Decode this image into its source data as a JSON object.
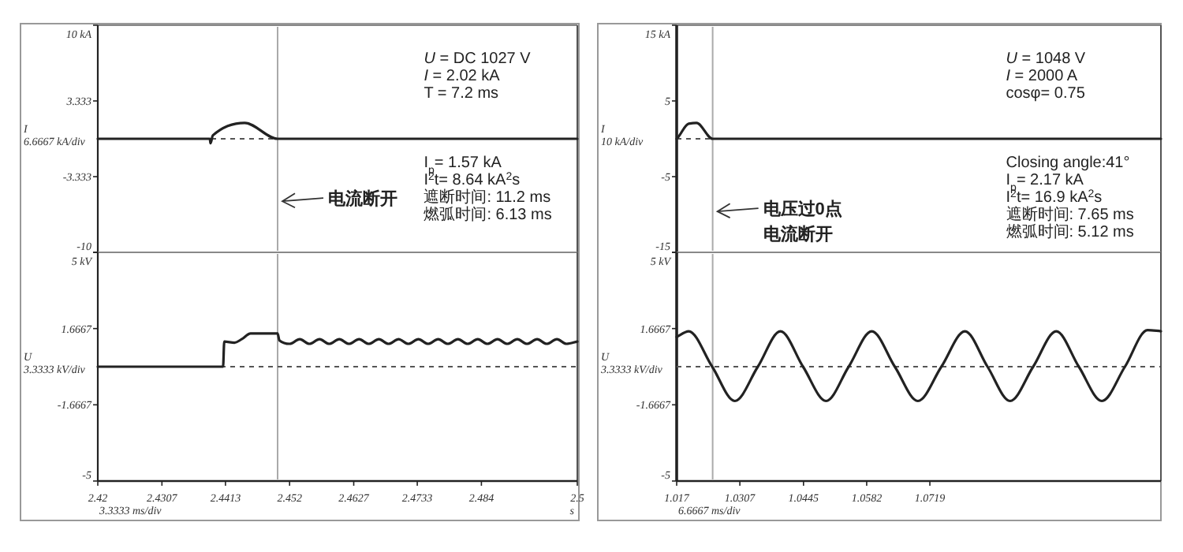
{
  "chart_data": [
    {
      "type": "line",
      "ylabel": "I 6.6667 kA/div",
      "xlim": [
        2.42,
        2.5
      ],
      "ylim": [
        -10,
        10
      ],
      "yticks": [
        {
          "value": 10,
          "label": "10 kA"
        },
        3.333,
        -3.333,
        -10
      ],
      "tick_labels": "y",
      "series": [
        {
          "color": "#222222",
          "x": [
            2.42,
            2.4387,
            2.4388,
            2.4392,
            2.4445,
            2.45,
            2.5
          ],
          "values": [
            0,
            0,
            -0.4,
            0.3,
            1.4,
            0,
            0
          ]
        }
      ],
      "ref_lines": [
        {
          "axis": "x",
          "value": 2.45,
          "color": "#aaaaaa"
        },
        {
          "axis": "y",
          "value": 0,
          "color": "#555555",
          "line_style": "dashed"
        }
      ],
      "annotations": [
        "*U* = DC 1027 V",
        "*I* = 2.02 kA",
        "T = 7.2 ms",
        "I$_{p}$= 1.57 kA",
        "I$^{2}$t= 8.64 kA$^{2}$s",
        "遮断时间: 11.2 ms",
        "燃弧时间: 6.13 ms",
        {
          "text": "电流断开",
          "x": 2.45,
          "y": -5.5
        }
      ]
    },
    {
      "type": "line",
      "ylabel": "U 3.3333 kV/div",
      "xlabel": "3.3333 ms/div",
      "xlim": [
        2.42,
        2.5
      ],
      "xticks": [
        2.42,
        2.4307,
        2.4413,
        2.452,
        2.4627,
        2.4733,
        2.484,
        2.5
      ],
      "ylim": [
        -5,
        5
      ],
      "yticks": [
        {
          "value": 5,
          "label": "5 kV"
        },
        1.6667,
        -1.6667,
        -5
      ],
      "series": [
        {
          "color": "#222222",
          "x": [
            2.42,
            2.4409,
            2.4411,
            2.4428,
            2.444,
            2.4455,
            2.45,
            2.4503,
            2.452,
            2.4537,
            2.4553,
            2.457,
            2.4586,
            2.4603,
            2.4619,
            2.4636,
            2.4652,
            2.4669,
            2.4685,
            2.4702,
            2.4718,
            2.4735,
            2.4751,
            2.4768,
            2.4784,
            2.4801,
            2.4817,
            2.4834,
            2.485,
            2.4867,
            2.4883,
            2.49,
            2.4916,
            2.4933,
            2.4949,
            2.4966,
            2.4982,
            2.5
          ],
          "values": [
            0,
            0,
            1.1,
            1.05,
            1.2,
            1.45,
            1.45,
            1.15,
            1.0,
            1.2,
            1.0,
            1.2,
            1.0,
            1.2,
            1.0,
            1.2,
            1.0,
            1.2,
            1.0,
            1.2,
            1.0,
            1.2,
            1.0,
            1.2,
            1.0,
            1.2,
            1.0,
            1.2,
            1.0,
            1.2,
            1.0,
            1.2,
            1.0,
            1.2,
            1.0,
            1.2,
            1.0,
            1.1
          ]
        }
      ],
      "ref_lines": [
        {
          "axis": "x",
          "value": 2.45,
          "color": "#aaaaaa"
        },
        {
          "axis": "y",
          "value": 0,
          "color": "#555555",
          "line_style": "dashed"
        }
      ],
      "annotations": [
        "s"
      ]
    },
    {
      "type": "line",
      "ylabel": "I 10 kA/div",
      "xlim": [
        1.017,
        1.122
      ],
      "ylim": [
        -15,
        15
      ],
      "yticks": [
        {
          "value": 15,
          "label": "15 kA"
        },
        5,
        -5,
        -15
      ],
      "tick_labels": "y",
      "series": [
        {
          "color": "#222222",
          "x": [
            1.017,
            1.0173,
            1.0196,
            1.0213,
            1.0248,
            1.122
          ],
          "values": [
            0,
            0.2,
            2.0,
            2.1,
            0,
            0
          ]
        }
      ],
      "ref_lines": [
        {
          "axis": "x",
          "value": 1.0248,
          "color": "#aaaaaa"
        },
        {
          "axis": "y",
          "value": 0,
          "color": "#555555",
          "line_style": "dashed"
        }
      ],
      "annotations": [
        "*U* = 1048 V",
        "*I* = 2000 A",
        "cosφ= 0.75",
        "Closing angle:41°",
        "I$_{p}$= 2.17 kA",
        "I$^{2}$t= 16.9 kA$^{2}$s",
        "遮断时间: 7.65 ms",
        "燃弧时间: 5.12 ms",
        {
          "text": "电压过0点电流断开",
          "x": 1.0248,
          "y": -9.6
        }
      ]
    },
    {
      "type": "line",
      "ylabel": "U 3.3333 kV/div",
      "xlabel": "6.6667 ms/div",
      "xlim": [
        1.017,
        1.122
      ],
      "xticks": [
        1.017,
        1.0307,
        1.0445,
        1.0582,
        1.0719
      ],
      "ylim": [
        -5,
        5
      ],
      "yticks": [
        {
          "value": 5,
          "label": "5 kV"
        },
        1.6667,
        -1.6667,
        -5
      ],
      "series": [
        {
          "color": "#222222",
          "x": [
            1.017,
            1.0196,
            1.0247,
            1.0296,
            1.0346,
            1.0395,
            1.0444,
            1.0494,
            1.0543,
            1.0593,
            1.0643,
            1.0693,
            1.0744,
            1.0795,
            1.0844,
            1.0893,
            1.0943,
            1.0993,
            1.1042,
            1.1092,
            1.1142,
            1.1191,
            1.122
          ],
          "values": [
            1.3,
            1.55,
            0,
            -1.5,
            0,
            1.55,
            0,
            -1.5,
            0,
            1.55,
            0,
            -1.5,
            0,
            1.55,
            0,
            -1.5,
            0,
            1.55,
            0,
            -1.5,
            0,
            1.6,
            1.55
          ]
        }
      ],
      "ref_lines": [
        {
          "axis": "x",
          "value": 1.0248,
          "color": "#aaaaaa"
        },
        {
          "axis": "y",
          "value": 0,
          "color": "#555555",
          "line_style": "dashed"
        }
      ]
    }
  ]
}
